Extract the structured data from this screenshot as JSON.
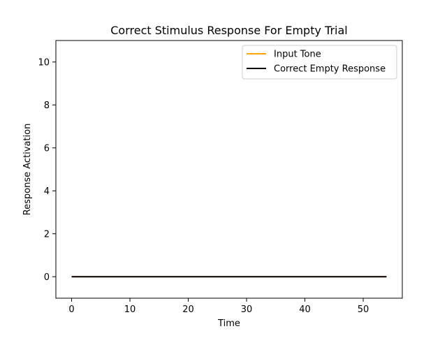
{
  "chart_data": {
    "type": "line",
    "title": "Correct Stimulus Response For Empty Trial",
    "xlabel": "Time",
    "ylabel": "Response Activation",
    "xlim": [
      -2.7,
      56.7
    ],
    "ylim": [
      -1,
      11
    ],
    "xticks": [
      0,
      10,
      20,
      30,
      40,
      50
    ],
    "yticks": [
      0,
      2,
      4,
      6,
      8,
      10
    ],
    "grid": false,
    "legend_position": "top-right",
    "series": [
      {
        "name": "Input Tone",
        "color": "#ffa500",
        "x": [
          0,
          54
        ],
        "y": [
          0,
          0
        ]
      },
      {
        "name": "Correct Empty Response",
        "color": "#000000",
        "x": [
          0,
          54
        ],
        "y": [
          0,
          0
        ]
      }
    ]
  }
}
